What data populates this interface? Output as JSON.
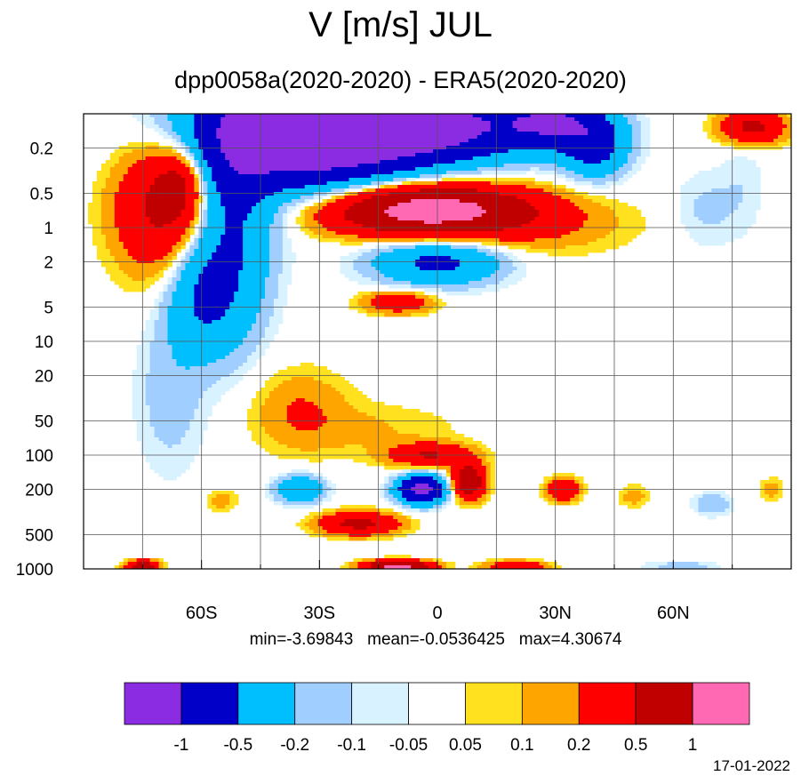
{
  "title": "V [m/s] JUL",
  "subtitle": "dpp0058a(2020-2020) - ERA5(2020-2020)",
  "stats": {
    "min_label": "min=-3.69843",
    "mean_label": "mean=-0.0536425",
    "max_label": "max=4.30674"
  },
  "date": "17-01-2022",
  "chart_data": {
    "type": "heatmap",
    "x_ticks": [
      "60S",
      "30S",
      "0",
      "30N",
      "60N"
    ],
    "x_values": [
      -60,
      -30,
      0,
      30,
      60
    ],
    "y_ticks": [
      "0.2",
      "0.5",
      "1",
      "2",
      "5",
      "10",
      "20",
      "50",
      "100",
      "200",
      "500",
      "1000"
    ],
    "y_values": [
      0.2,
      0.5,
      1,
      2,
      5,
      10,
      20,
      50,
      100,
      200,
      500,
      1000
    ],
    "y_scale": "log",
    "y_inverted": true,
    "ylim": [
      0.1,
      1000
    ],
    "xlim": [
      -90,
      90
    ],
    "grid": true,
    "colorbar": {
      "colors": [
        "#8b2be2",
        "#0000c8",
        "#00bfff",
        "#a0cfff",
        "#d8f2ff",
        "#ffffff",
        "#ffe11f",
        "#ffa500",
        "#ff0000",
        "#c00000",
        "#ff69b4"
      ],
      "tick_labels": [
        "-1",
        "-0.5",
        "-0.2",
        "-0.1",
        "-0.05",
        "0.05",
        "0.1",
        "0.2",
        "0.5",
        "1"
      ],
      "levels": [
        -1,
        -0.5,
        -0.2,
        -0.1,
        -0.05,
        0.05,
        0.1,
        0.2,
        0.5,
        1
      ]
    },
    "features": [
      {
        "lat": -35,
        "p": 0.15,
        "dlat": 28,
        "dlogp": 0.5,
        "v": -1.4
      },
      {
        "lat": -5,
        "p": 0.13,
        "dlat": 30,
        "dlogp": 0.3,
        "v": -1.2
      },
      {
        "lat": 30,
        "p": 0.12,
        "dlat": 12,
        "dlogp": 0.2,
        "v": -0.8
      },
      {
        "lat": 40,
        "p": 0.2,
        "dlat": 8,
        "dlogp": 0.25,
        "v": -0.6
      },
      {
        "lat": 80,
        "p": 0.13,
        "dlat": 8,
        "dlogp": 0.15,
        "v": 0.6
      },
      {
        "lat": -70,
        "p": 0.6,
        "dlat": 12,
        "dlogp": 0.6,
        "v": 0.6
      },
      {
        "lat": -65,
        "p": 0.4,
        "dlat": 6,
        "dlogp": 0.3,
        "v": 0.4
      },
      {
        "lat": -52,
        "p": 1.0,
        "dlat": 10,
        "dlogp": 0.9,
        "v": -0.5
      },
      {
        "lat": -60,
        "p": 4.0,
        "dlat": 9,
        "dlogp": 0.5,
        "v": -0.45
      },
      {
        "lat": -68,
        "p": 30,
        "dlat": 9,
        "dlogp": 0.7,
        "v": -0.15
      },
      {
        "lat": -3,
        "p": 0.7,
        "dlat": 26,
        "dlogp": 0.22,
        "v": 1.3
      },
      {
        "lat": 25,
        "p": 1.0,
        "dlat": 25,
        "dlogp": 0.25,
        "v": 0.15
      },
      {
        "lat": 0,
        "p": 2.0,
        "dlat": 16,
        "dlogp": 0.2,
        "v": -0.6
      },
      {
        "lat": -10,
        "p": 4.5,
        "dlat": 9,
        "dlogp": 0.1,
        "v": 0.4
      },
      {
        "lat": 68,
        "p": 0.7,
        "dlat": 8,
        "dlogp": 0.35,
        "v": -0.12
      },
      {
        "lat": 78,
        "p": 0.4,
        "dlat": 6,
        "dlogp": 0.5,
        "v": -0.08
      },
      {
        "lat": -35,
        "p": 40,
        "dlat": 12,
        "dlogp": 0.35,
        "v": 0.2
      },
      {
        "lat": -15,
        "p": 60,
        "dlat": 22,
        "dlogp": 0.25,
        "v": 0.1
      },
      {
        "lat": -2,
        "p": 100,
        "dlat": 10,
        "dlogp": 0.1,
        "v": 0.5
      },
      {
        "lat": -4,
        "p": 200,
        "dlat": 6,
        "dlogp": 0.12,
        "v": -1.2
      },
      {
        "lat": 8,
        "p": 170,
        "dlat": 4,
        "dlogp": 0.15,
        "v": 0.9
      },
      {
        "lat": -35,
        "p": 200,
        "dlat": 6,
        "dlogp": 0.12,
        "v": -0.5
      },
      {
        "lat": -20,
        "p": 400,
        "dlat": 10,
        "dlogp": 0.1,
        "v": 0.6
      },
      {
        "lat": 32,
        "p": 200,
        "dlat": 4,
        "dlogp": 0.1,
        "v": 0.5
      },
      {
        "lat": 70,
        "p": 270,
        "dlat": 5,
        "dlogp": 0.1,
        "v": -0.2
      },
      {
        "lat": 85,
        "p": 200,
        "dlat": 3,
        "dlogp": 0.1,
        "v": 0.15
      },
      {
        "lat": 50,
        "p": 230,
        "dlat": 4,
        "dlogp": 0.1,
        "v": 0.15
      },
      {
        "lat": -55,
        "p": 250,
        "dlat": 4,
        "dlogp": 0.1,
        "v": 0.15
      },
      {
        "lat": -10,
        "p": 950,
        "dlat": 8,
        "dlogp": 0.05,
        "v": 1.2
      },
      {
        "lat": 20,
        "p": 950,
        "dlat": 8,
        "dlogp": 0.05,
        "v": 0.4
      },
      {
        "lat": -75,
        "p": 950,
        "dlat": 4,
        "dlogp": 0.05,
        "v": 0.8
      },
      {
        "lat": 62,
        "p": 950,
        "dlat": 10,
        "dlogp": 0.05,
        "v": -0.15
      }
    ]
  }
}
